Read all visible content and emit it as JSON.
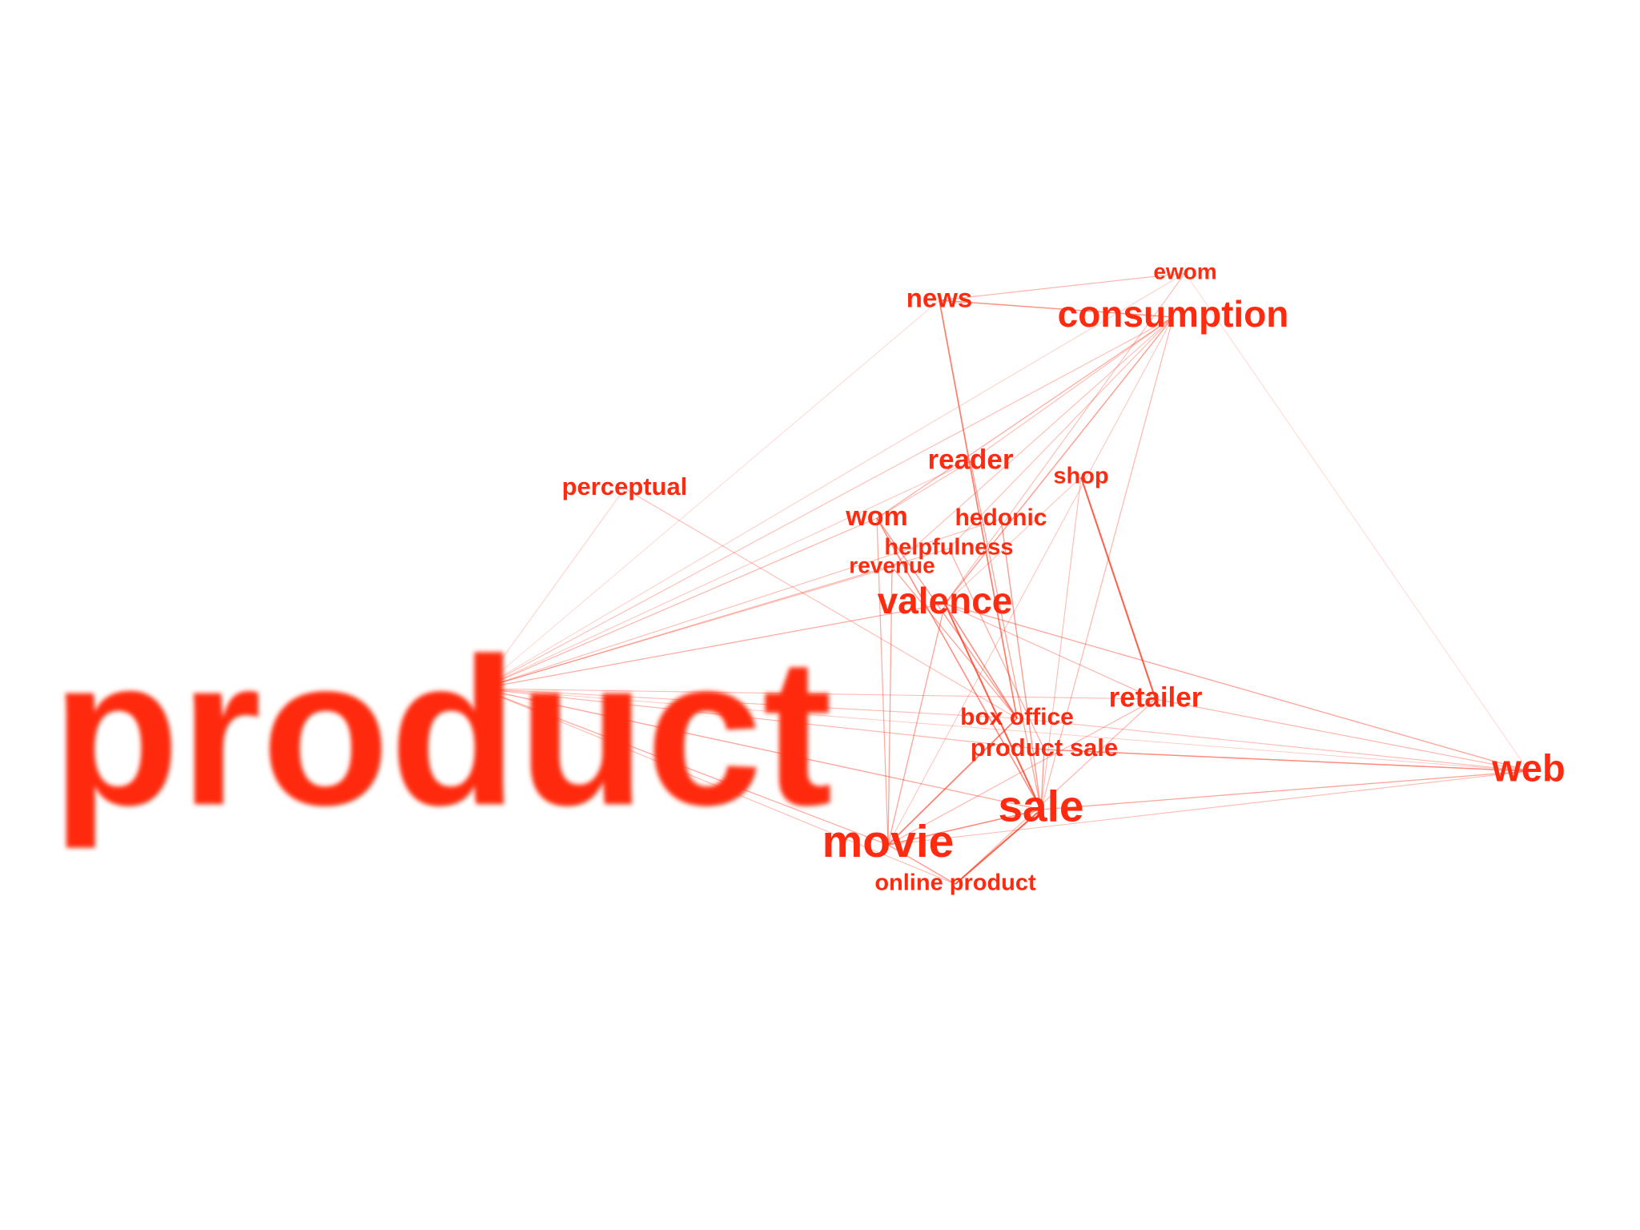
{
  "colors": {
    "term": "#ff2b10",
    "edge": "#ff2b10",
    "background": "#ffffff"
  },
  "terms": {
    "product": {
      "label": "product"
    },
    "consumption": {
      "label": "consumption"
    },
    "ewom": {
      "label": "ewom"
    },
    "news": {
      "label": "news"
    },
    "reader": {
      "label": "reader"
    },
    "shop": {
      "label": "shop"
    },
    "perceptual": {
      "label": "perceptual"
    },
    "wom": {
      "label": "wom"
    },
    "hedonic": {
      "label": "hedonic"
    },
    "helpfulness": {
      "label": "helpfulness"
    },
    "revenue": {
      "label": "revenue"
    },
    "valence": {
      "label": "valence"
    },
    "retailer": {
      "label": "retailer"
    },
    "box_office": {
      "label": "box office"
    },
    "product_sale": {
      "label": "product sale"
    },
    "web": {
      "label": "web"
    },
    "sale": {
      "label": "sale"
    },
    "movie": {
      "label": "movie"
    },
    "online_product": {
      "label": "online product"
    }
  },
  "edges": [
    [
      "news",
      "consumption",
      0.55
    ],
    [
      "news",
      "ewom",
      0.35
    ],
    [
      "news",
      "box_office",
      0.7
    ],
    [
      "news",
      "product",
      0.15
    ],
    [
      "consumption",
      "product",
      0.3
    ],
    [
      "consumption",
      "wom",
      0.4
    ],
    [
      "consumption",
      "valence",
      0.5
    ],
    [
      "consumption",
      "revenue",
      0.3
    ],
    [
      "consumption",
      "helpfulness",
      0.3
    ],
    [
      "consumption",
      "sale",
      0.35
    ],
    [
      "consumption",
      "movie",
      0.25
    ],
    [
      "consumption",
      "reader",
      0.3
    ],
    [
      "ewom",
      "product",
      0.2
    ],
    [
      "ewom",
      "valence",
      0.3
    ],
    [
      "ewom",
      "web",
      0.15
    ],
    [
      "reader",
      "product",
      0.25
    ],
    [
      "reader",
      "sale",
      0.45
    ],
    [
      "reader",
      "wom",
      0.3
    ],
    [
      "shop",
      "retailer",
      0.9
    ],
    [
      "shop",
      "sale",
      0.3
    ],
    [
      "shop",
      "valence",
      0.25
    ],
    [
      "perceptual",
      "product",
      0.2
    ],
    [
      "perceptual",
      "box_office",
      0.3
    ],
    [
      "wom",
      "product",
      0.35
    ],
    [
      "wom",
      "sale",
      0.6
    ],
    [
      "wom",
      "movie",
      0.4
    ],
    [
      "wom",
      "box_office",
      0.5
    ],
    [
      "hedonic",
      "product",
      0.3
    ],
    [
      "hedonic",
      "sale",
      0.5
    ],
    [
      "helpfulness",
      "product",
      0.35
    ],
    [
      "helpfulness",
      "product_sale",
      0.4
    ],
    [
      "revenue",
      "product",
      0.3
    ],
    [
      "revenue",
      "movie",
      0.45
    ],
    [
      "revenue",
      "box_office",
      0.45
    ],
    [
      "valence",
      "product",
      0.4
    ],
    [
      "valence",
      "sale",
      0.9
    ],
    [
      "valence",
      "box_office",
      0.6
    ],
    [
      "valence",
      "movie",
      0.45
    ],
    [
      "valence",
      "web",
      0.45
    ],
    [
      "valence",
      "retailer",
      0.35
    ],
    [
      "retailer",
      "product",
      0.3
    ],
    [
      "retailer",
      "web",
      0.35
    ],
    [
      "retailer",
      "movie",
      0.35
    ],
    [
      "retailer",
      "online_product",
      0.35
    ],
    [
      "box_office",
      "product",
      0.3
    ],
    [
      "box_office",
      "movie",
      0.7
    ],
    [
      "box_office",
      "web",
      0.3
    ],
    [
      "product_sale",
      "product",
      0.35
    ],
    [
      "product_sale",
      "web",
      0.6
    ],
    [
      "sale",
      "product",
      0.45
    ],
    [
      "sale",
      "web",
      0.45
    ],
    [
      "sale",
      "movie",
      0.6
    ],
    [
      "sale",
      "online_product",
      0.9
    ],
    [
      "sale",
      "product_sale",
      0.5
    ],
    [
      "movie",
      "product",
      0.4
    ],
    [
      "movie",
      "web",
      0.3
    ],
    [
      "movie",
      "online_product",
      0.5
    ],
    [
      "online_product",
      "product",
      0.3
    ],
    [
      "web",
      "product",
      0.2
    ]
  ]
}
